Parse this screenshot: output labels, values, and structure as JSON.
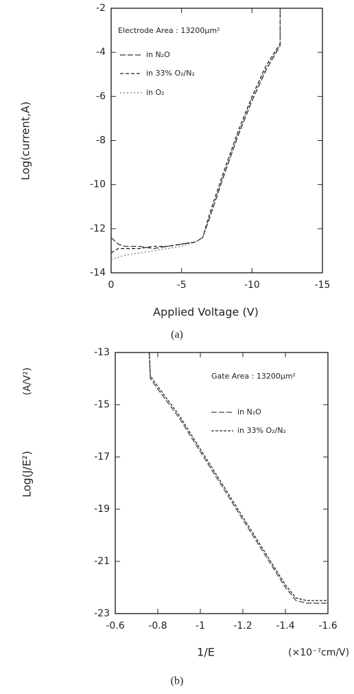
{
  "chart_data": [
    {
      "type": "line",
      "annotation": "Electrode Area : 13200μm²",
      "ylabel": "Log(current,A)",
      "xlabel": "Applied Voltage (V)",
      "caption": "(a)",
      "xlim": [
        0,
        -15
      ],
      "xticks": [
        0,
        -5,
        -10,
        -15
      ],
      "ylim": [
        -14,
        -2
      ],
      "yticks": [
        -14,
        -12,
        -10,
        -8,
        -6,
        -4,
        -2
      ],
      "x": [
        0,
        -0.5,
        -1,
        -2,
        -3,
        -4,
        -5,
        -6,
        -6.5,
        -7,
        -8,
        -9,
        -10,
        -11,
        -12,
        -12
      ],
      "series": [
        {
          "name": "in N₂O",
          "color": "#333333",
          "dash": "8 3",
          "values": [
            -12.4,
            -12.7,
            -12.8,
            -12.8,
            -12.9,
            -12.8,
            -12.7,
            -12.6,
            -12.4,
            -11.5,
            -9.6,
            -7.8,
            -6.2,
            -4.8,
            -3.7,
            -2
          ]
        },
        {
          "name": "in 33% O₂/N₂",
          "color": "#222222",
          "dash": "5 3",
          "values": [
            -13.1,
            -12.9,
            -12.9,
            -12.9,
            -12.8,
            -12.8,
            -12.7,
            -12.6,
            -12.4,
            -11.3,
            -9.4,
            -7.6,
            -6.0,
            -4.6,
            -3.6,
            -2
          ]
        },
        {
          "name": "in O₂",
          "color": "#777777",
          "dash": "2 3",
          "values": [
            -13.4,
            -13.3,
            -13.2,
            -13.1,
            -13.0,
            -12.9,
            -12.8,
            -12.6,
            -12.4,
            -11.4,
            -9.5,
            -7.7,
            -6.1,
            -4.7,
            -3.65,
            -2
          ]
        }
      ]
    },
    {
      "type": "line",
      "annotation": "Gate Area : 13200μm²",
      "ylabel": "Log(J/E²)",
      "yunit": "(A/V²)",
      "xlabel": "1/E",
      "xunit": "(×10⁻⁷cm/V)",
      "caption": "(b)",
      "xlim": [
        -0.6,
        -1.6
      ],
      "xticks": [
        -0.6,
        -0.8,
        -1,
        -1.2,
        -1.4,
        -1.6
      ],
      "ylim": [
        -23,
        -13
      ],
      "yticks": [
        -23,
        -21,
        -19,
        -17,
        -15,
        -13
      ],
      "x": [
        -0.76,
        -0.765,
        -0.8,
        -0.9,
        -1.0,
        -1.1,
        -1.2,
        -1.3,
        -1.4,
        -1.45,
        -1.5,
        -1.6
      ],
      "series": [
        {
          "name": "in N₂O",
          "color": "#444444",
          "dash": "8 3",
          "values": [
            -13,
            -14.0,
            -14.4,
            -15.5,
            -16.8,
            -18.1,
            -19.4,
            -20.7,
            -22.0,
            -22.5,
            -22.6,
            -22.6
          ]
        },
        {
          "name": "in 33% O₂/N₂",
          "color": "#222222",
          "dash": "4 2",
          "values": [
            -13,
            -13.9,
            -14.3,
            -15.4,
            -16.7,
            -18.0,
            -19.3,
            -20.6,
            -21.9,
            -22.4,
            -22.5,
            -22.5
          ]
        }
      ]
    }
  ]
}
